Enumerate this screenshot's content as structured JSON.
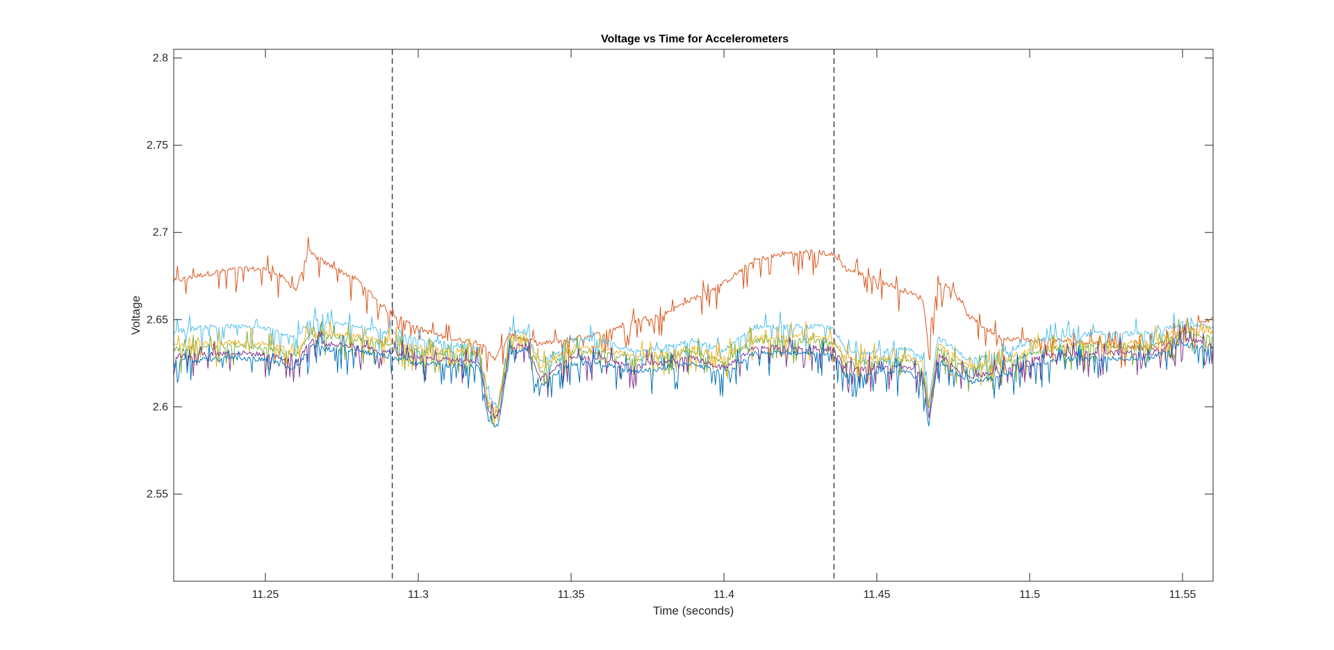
{
  "chart_data": {
    "type": "line",
    "title": "Voltage vs Time for Accelerometers",
    "xlabel": "Time (seconds)",
    "ylabel": "Voltage",
    "xlim": [
      11.22,
      11.56
    ],
    "ylim": [
      2.5,
      2.805
    ],
    "xticks": [
      11.25,
      11.3,
      11.35,
      11.4,
      11.45,
      11.5,
      11.55
    ],
    "xtick_labels": [
      "11.25",
      "11.3",
      "11.35",
      "11.4",
      "11.45",
      "11.5",
      "11.55"
    ],
    "yticks": [
      2.55,
      2.6,
      2.65,
      2.7,
      2.75,
      2.8
    ],
    "ytick_labels": [
      "2.55",
      "2.6",
      "2.65",
      "2.7",
      "2.75",
      "2.8"
    ],
    "grid": false,
    "legend": "none",
    "vertical_dashed_lines_x": [
      11.2915,
      11.436
    ],
    "series": [
      {
        "color": "#D95319",
        "points": [
          [
            11.22,
            2.672
          ],
          [
            11.23,
            2.676
          ],
          [
            11.24,
            2.679
          ],
          [
            11.25,
            2.679
          ],
          [
            11.255,
            2.675
          ],
          [
            11.26,
            2.667
          ],
          [
            11.264,
            2.689
          ],
          [
            11.27,
            2.682
          ],
          [
            11.28,
            2.673
          ],
          [
            11.29,
            2.655
          ],
          [
            11.3,
            2.645
          ],
          [
            11.31,
            2.639
          ],
          [
            11.32,
            2.637
          ],
          [
            11.3225,
            2.632
          ],
          [
            11.325,
            2.628
          ],
          [
            11.33,
            2.641
          ],
          [
            11.34,
            2.636
          ],
          [
            11.35,
            2.639
          ],
          [
            11.36,
            2.642
          ],
          [
            11.37,
            2.649
          ],
          [
            11.38,
            2.653
          ],
          [
            11.39,
            2.662
          ],
          [
            11.4,
            2.671
          ],
          [
            11.41,
            2.684
          ],
          [
            11.42,
            2.688
          ],
          [
            11.43,
            2.689
          ],
          [
            11.436,
            2.687
          ],
          [
            11.44,
            2.679
          ],
          [
            11.45,
            2.673
          ],
          [
            11.46,
            2.666
          ],
          [
            11.465,
            2.662
          ],
          [
            11.467,
            2.634
          ],
          [
            11.47,
            2.672
          ],
          [
            11.475,
            2.667
          ],
          [
            11.48,
            2.652
          ],
          [
            11.49,
            2.64
          ],
          [
            11.5,
            2.638
          ],
          [
            11.51,
            2.638
          ],
          [
            11.52,
            2.637
          ],
          [
            11.53,
            2.635
          ],
          [
            11.54,
            2.633
          ],
          [
            11.55,
            2.643
          ],
          [
            11.56,
            2.651
          ]
        ]
      },
      {
        "color": "#4DBEEE",
        "points": [
          [
            11.22,
            2.643
          ],
          [
            11.23,
            2.646
          ],
          [
            11.24,
            2.646
          ],
          [
            11.25,
            2.645
          ],
          [
            11.26,
            2.64
          ],
          [
            11.265,
            2.65
          ],
          [
            11.27,
            2.648
          ],
          [
            11.28,
            2.647
          ],
          [
            11.29,
            2.643
          ],
          [
            11.3,
            2.638
          ],
          [
            11.31,
            2.636
          ],
          [
            11.32,
            2.634
          ],
          [
            11.323,
            2.605
          ],
          [
            11.326,
            2.6
          ],
          [
            11.33,
            2.645
          ],
          [
            11.335,
            2.643
          ],
          [
            11.34,
            2.625
          ],
          [
            11.35,
            2.638
          ],
          [
            11.36,
            2.638
          ],
          [
            11.37,
            2.632
          ],
          [
            11.38,
            2.634
          ],
          [
            11.39,
            2.638
          ],
          [
            11.4,
            2.632
          ],
          [
            11.41,
            2.646
          ],
          [
            11.42,
            2.646
          ],
          [
            11.43,
            2.646
          ],
          [
            11.436,
            2.645
          ],
          [
            11.44,
            2.631
          ],
          [
            11.45,
            2.632
          ],
          [
            11.46,
            2.633
          ],
          [
            11.465,
            2.628
          ],
          [
            11.467,
            2.603
          ],
          [
            11.47,
            2.64
          ],
          [
            11.48,
            2.627
          ],
          [
            11.49,
            2.63
          ],
          [
            11.5,
            2.637
          ],
          [
            11.51,
            2.64
          ],
          [
            11.52,
            2.642
          ],
          [
            11.53,
            2.642
          ],
          [
            11.54,
            2.642
          ],
          [
            11.55,
            2.648
          ],
          [
            11.56,
            2.646
          ]
        ]
      },
      {
        "color": "#77AC30",
        "points": [
          [
            11.22,
            2.633
          ],
          [
            11.23,
            2.634
          ],
          [
            11.24,
            2.635
          ],
          [
            11.25,
            2.634
          ],
          [
            11.26,
            2.63
          ],
          [
            11.265,
            2.642
          ],
          [
            11.27,
            2.64
          ],
          [
            11.28,
            2.639
          ],
          [
            11.29,
            2.636
          ],
          [
            11.3,
            2.632
          ],
          [
            11.31,
            2.631
          ],
          [
            11.32,
            2.63
          ],
          [
            11.323,
            2.6
          ],
          [
            11.326,
            2.597
          ],
          [
            11.33,
            2.638
          ],
          [
            11.335,
            2.64
          ],
          [
            11.34,
            2.62
          ],
          [
            11.35,
            2.632
          ],
          [
            11.36,
            2.632
          ],
          [
            11.37,
            2.627
          ],
          [
            11.38,
            2.629
          ],
          [
            11.39,
            2.632
          ],
          [
            11.4,
            2.626
          ],
          [
            11.41,
            2.638
          ],
          [
            11.42,
            2.638
          ],
          [
            11.43,
            2.638
          ],
          [
            11.436,
            2.637
          ],
          [
            11.44,
            2.625
          ],
          [
            11.45,
            2.626
          ],
          [
            11.46,
            2.627
          ],
          [
            11.465,
            2.623
          ],
          [
            11.467,
            2.598
          ],
          [
            11.47,
            2.634
          ],
          [
            11.48,
            2.621
          ],
          [
            11.49,
            2.624
          ],
          [
            11.5,
            2.631
          ],
          [
            11.51,
            2.634
          ],
          [
            11.52,
            2.635
          ],
          [
            11.53,
            2.635
          ],
          [
            11.54,
            2.635
          ],
          [
            11.55,
            2.643
          ],
          [
            11.56,
            2.64
          ]
        ]
      },
      {
        "color": "#EDB120",
        "points": [
          [
            11.22,
            2.635
          ],
          [
            11.23,
            2.636
          ],
          [
            11.24,
            2.637
          ],
          [
            11.25,
            2.636
          ],
          [
            11.26,
            2.632
          ],
          [
            11.265,
            2.644
          ],
          [
            11.27,
            2.642
          ],
          [
            11.28,
            2.641
          ],
          [
            11.29,
            2.638
          ],
          [
            11.3,
            2.634
          ],
          [
            11.31,
            2.633
          ],
          [
            11.32,
            2.632
          ],
          [
            11.323,
            2.602
          ],
          [
            11.326,
            2.599
          ],
          [
            11.33,
            2.64
          ],
          [
            11.335,
            2.642
          ],
          [
            11.34,
            2.622
          ],
          [
            11.35,
            2.634
          ],
          [
            11.36,
            2.634
          ],
          [
            11.37,
            2.629
          ],
          [
            11.38,
            2.631
          ],
          [
            11.39,
            2.634
          ],
          [
            11.4,
            2.628
          ],
          [
            11.41,
            2.64
          ],
          [
            11.42,
            2.64
          ],
          [
            11.43,
            2.64
          ],
          [
            11.436,
            2.639
          ],
          [
            11.44,
            2.627
          ],
          [
            11.45,
            2.628
          ],
          [
            11.46,
            2.629
          ],
          [
            11.465,
            2.625
          ],
          [
            11.467,
            2.6
          ],
          [
            11.47,
            2.636
          ],
          [
            11.48,
            2.623
          ],
          [
            11.49,
            2.626
          ],
          [
            11.5,
            2.633
          ],
          [
            11.51,
            2.636
          ],
          [
            11.52,
            2.637
          ],
          [
            11.53,
            2.637
          ],
          [
            11.54,
            2.637
          ],
          [
            11.55,
            2.645
          ],
          [
            11.56,
            2.642
          ]
        ]
      },
      {
        "color": "#7E2F8E",
        "points": [
          [
            11.22,
            2.629
          ],
          [
            11.23,
            2.63
          ],
          [
            11.24,
            2.631
          ],
          [
            11.25,
            2.63
          ],
          [
            11.26,
            2.626
          ],
          [
            11.265,
            2.638
          ],
          [
            11.27,
            2.636
          ],
          [
            11.28,
            2.635
          ],
          [
            11.29,
            2.632
          ],
          [
            11.3,
            2.628
          ],
          [
            11.31,
            2.627
          ],
          [
            11.32,
            2.626
          ],
          [
            11.323,
            2.597
          ],
          [
            11.326,
            2.594
          ],
          [
            11.33,
            2.634
          ],
          [
            11.335,
            2.636
          ],
          [
            11.34,
            2.616
          ],
          [
            11.35,
            2.628
          ],
          [
            11.36,
            2.628
          ],
          [
            11.37,
            2.623
          ],
          [
            11.38,
            2.625
          ],
          [
            11.39,
            2.628
          ],
          [
            11.4,
            2.622
          ],
          [
            11.41,
            2.634
          ],
          [
            11.42,
            2.634
          ],
          [
            11.43,
            2.634
          ],
          [
            11.436,
            2.633
          ],
          [
            11.44,
            2.621
          ],
          [
            11.45,
            2.622
          ],
          [
            11.46,
            2.623
          ],
          [
            11.465,
            2.619
          ],
          [
            11.467,
            2.594
          ],
          [
            11.47,
            2.63
          ],
          [
            11.48,
            2.617
          ],
          [
            11.49,
            2.62
          ],
          [
            11.5,
            2.627
          ],
          [
            11.51,
            2.63
          ],
          [
            11.52,
            2.631
          ],
          [
            11.53,
            2.631
          ],
          [
            11.54,
            2.631
          ],
          [
            11.55,
            2.639
          ],
          [
            11.56,
            2.636
          ]
        ]
      },
      {
        "color": "#0072BD",
        "points": [
          [
            11.22,
            2.626
          ],
          [
            11.23,
            2.627
          ],
          [
            11.24,
            2.628
          ],
          [
            11.25,
            2.627
          ],
          [
            11.26,
            2.622
          ],
          [
            11.265,
            2.635
          ],
          [
            11.27,
            2.633
          ],
          [
            11.28,
            2.632
          ],
          [
            11.29,
            2.629
          ],
          [
            11.3,
            2.625
          ],
          [
            11.31,
            2.624
          ],
          [
            11.32,
            2.623
          ],
          [
            11.323,
            2.592
          ],
          [
            11.326,
            2.588
          ],
          [
            11.33,
            2.631
          ],
          [
            11.335,
            2.633
          ],
          [
            11.34,
            2.612
          ],
          [
            11.35,
            2.625
          ],
          [
            11.36,
            2.625
          ],
          [
            11.37,
            2.62
          ],
          [
            11.38,
            2.622
          ],
          [
            11.39,
            2.625
          ],
          [
            11.4,
            2.619
          ],
          [
            11.41,
            2.631
          ],
          [
            11.42,
            2.631
          ],
          [
            11.43,
            2.631
          ],
          [
            11.436,
            2.63
          ],
          [
            11.44,
            2.618
          ],
          [
            11.45,
            2.619
          ],
          [
            11.46,
            2.62
          ],
          [
            11.465,
            2.615
          ],
          [
            11.467,
            2.589
          ],
          [
            11.47,
            2.627
          ],
          [
            11.48,
            2.614
          ],
          [
            11.49,
            2.617
          ],
          [
            11.5,
            2.624
          ],
          [
            11.51,
            2.627
          ],
          [
            11.52,
            2.628
          ],
          [
            11.53,
            2.628
          ],
          [
            11.54,
            2.628
          ],
          [
            11.55,
            2.636
          ],
          [
            11.56,
            2.633
          ]
        ]
      }
    ]
  }
}
